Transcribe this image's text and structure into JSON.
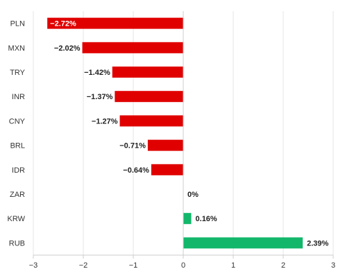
{
  "chart_data": {
    "type": "bar",
    "orientation": "horizontal",
    "title": "",
    "xlabel": "",
    "ylabel": "",
    "categories": [
      "PLN",
      "MXN",
      "TRY",
      "INR",
      "CNY",
      "BRL",
      "IDR",
      "ZAR",
      "KRW",
      "RUB"
    ],
    "values": [
      -2.72,
      -2.02,
      -1.42,
      -1.37,
      -1.27,
      -0.71,
      -0.64,
      0,
      0.16,
      2.39
    ],
    "data_labels": [
      "−2.72%",
      "−2.02%",
      "−1.42%",
      "−1.37%",
      "−1.27%",
      "−0.71%",
      "−0.64%",
      "0%",
      "0.16%",
      "2.39%"
    ],
    "xlim": [
      -3,
      3
    ],
    "xticks": [
      -3,
      -2,
      -1,
      0,
      1,
      2,
      3
    ],
    "xtick_labels": [
      "−3",
      "−2",
      "−1",
      "0",
      "1",
      "2",
      "3"
    ],
    "grid": "vertical",
    "colors": {
      "negative": "#e00000",
      "positive": "#12b76a"
    },
    "legend": "none"
  }
}
